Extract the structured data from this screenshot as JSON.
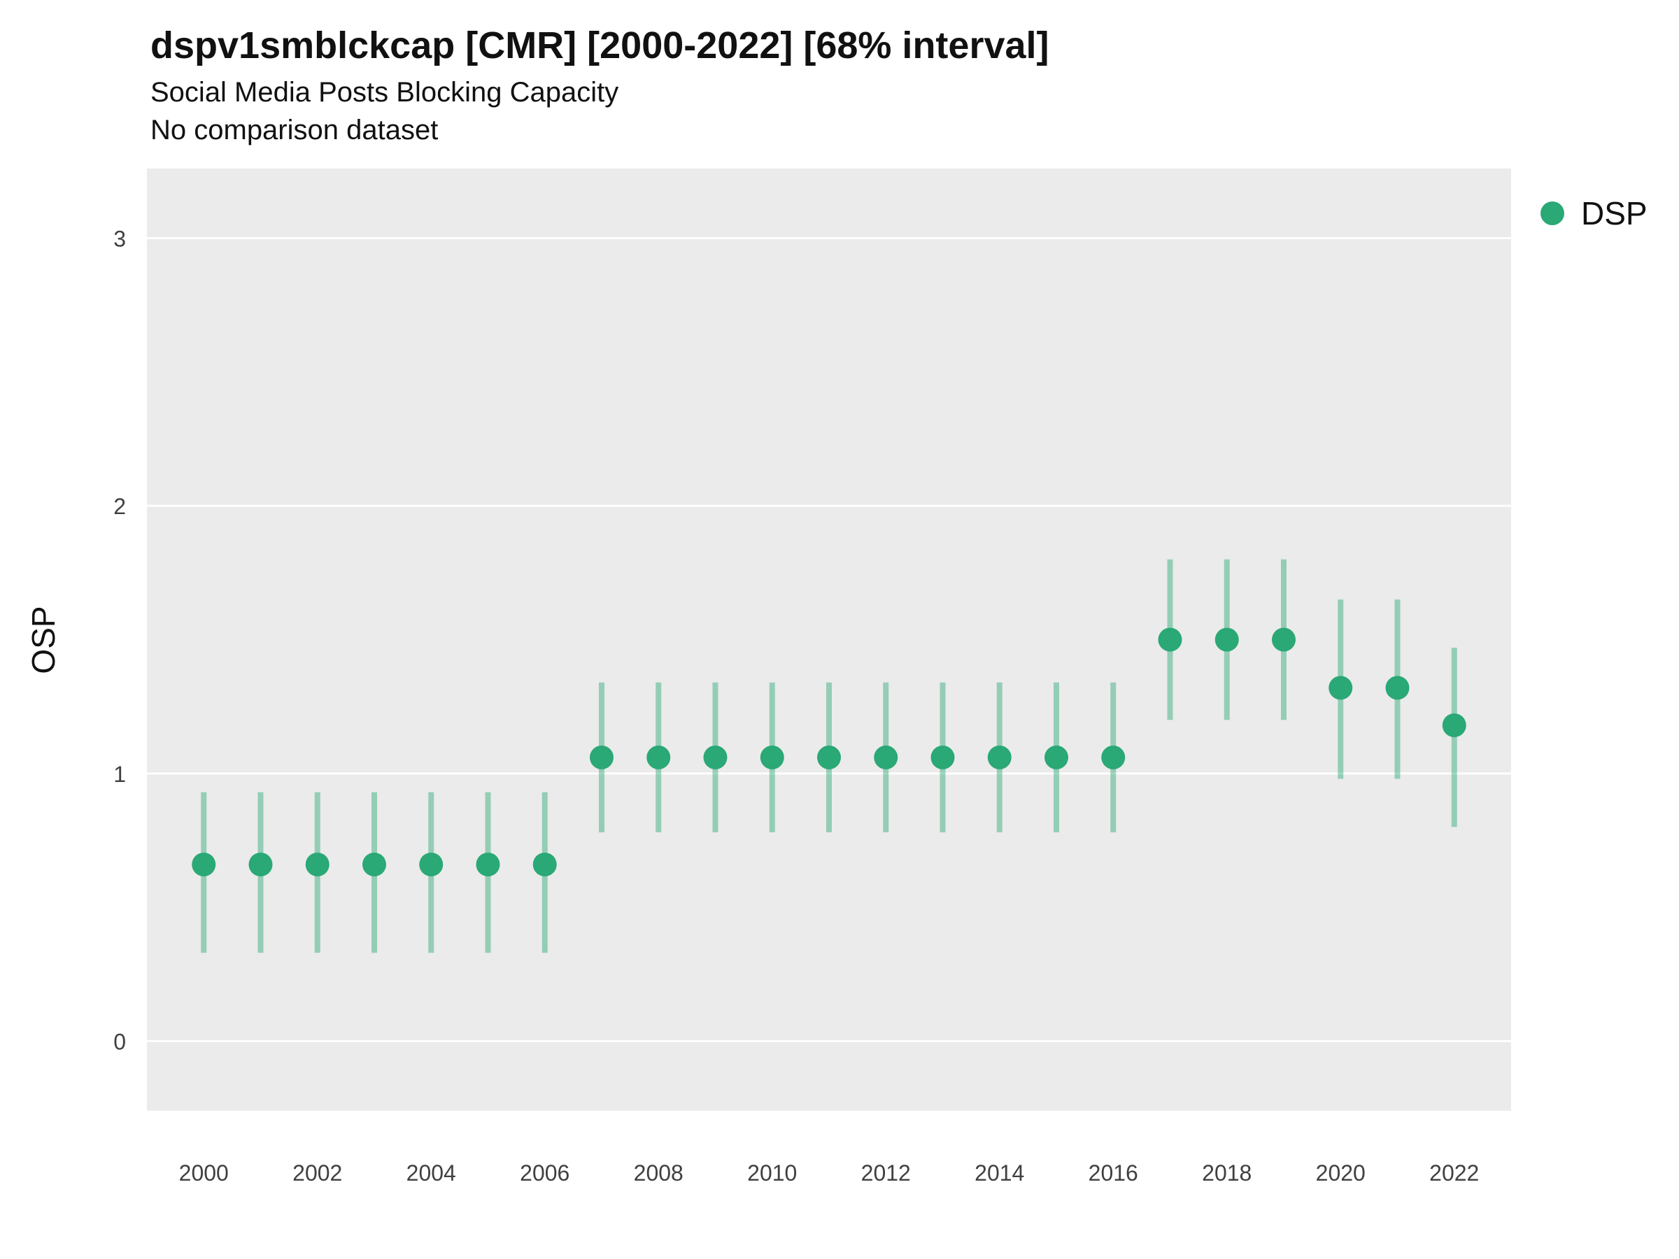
{
  "chart_data": {
    "type": "pointrange",
    "title": "dspv1smblckcap [CMR] [2000-2022] [68% interval]",
    "subtitle": "Social Media Posts Blocking Capacity",
    "note": "No comparison dataset",
    "xlabel": "",
    "ylabel": "OSP",
    "xlim": [
      1999,
      2023
    ],
    "ylim": [
      -0.26,
      3.26
    ],
    "xticks": [
      2000,
      2002,
      2004,
      2006,
      2008,
      2010,
      2012,
      2014,
      2016,
      2018,
      2020,
      2022
    ],
    "yticks": [
      0,
      1,
      2,
      3
    ],
    "grid": "major-horizontal",
    "legend_position": "right",
    "panel_background": "#EBEBEB",
    "gridline_color": "#FFFFFF",
    "tick_label_color": "#404040",
    "series": [
      {
        "name": "DSP",
        "color": "#2aa876",
        "range_color": "rgba(42,168,118,0.45)",
        "x": [
          2000,
          2001,
          2002,
          2003,
          2004,
          2005,
          2006,
          2007,
          2008,
          2009,
          2010,
          2011,
          2012,
          2013,
          2014,
          2015,
          2016,
          2017,
          2018,
          2019,
          2020,
          2021,
          2022
        ],
        "y": [
          0.66,
          0.66,
          0.66,
          0.66,
          0.66,
          0.66,
          0.66,
          1.06,
          1.06,
          1.06,
          1.06,
          1.06,
          1.06,
          1.06,
          1.06,
          1.06,
          1.06,
          1.5,
          1.5,
          1.5,
          1.32,
          1.32,
          1.18
        ],
        "ymin": [
          0.33,
          0.33,
          0.33,
          0.33,
          0.33,
          0.33,
          0.33,
          0.78,
          0.78,
          0.78,
          0.78,
          0.78,
          0.78,
          0.78,
          0.78,
          0.78,
          0.78,
          1.2,
          1.2,
          1.2,
          0.98,
          0.98,
          0.8
        ],
        "ymax": [
          0.93,
          0.93,
          0.93,
          0.93,
          0.93,
          0.93,
          0.93,
          1.34,
          1.34,
          1.34,
          1.34,
          1.34,
          1.34,
          1.34,
          1.34,
          1.34,
          1.34,
          1.8,
          1.8,
          1.8,
          1.65,
          1.65,
          1.47
        ]
      }
    ]
  }
}
